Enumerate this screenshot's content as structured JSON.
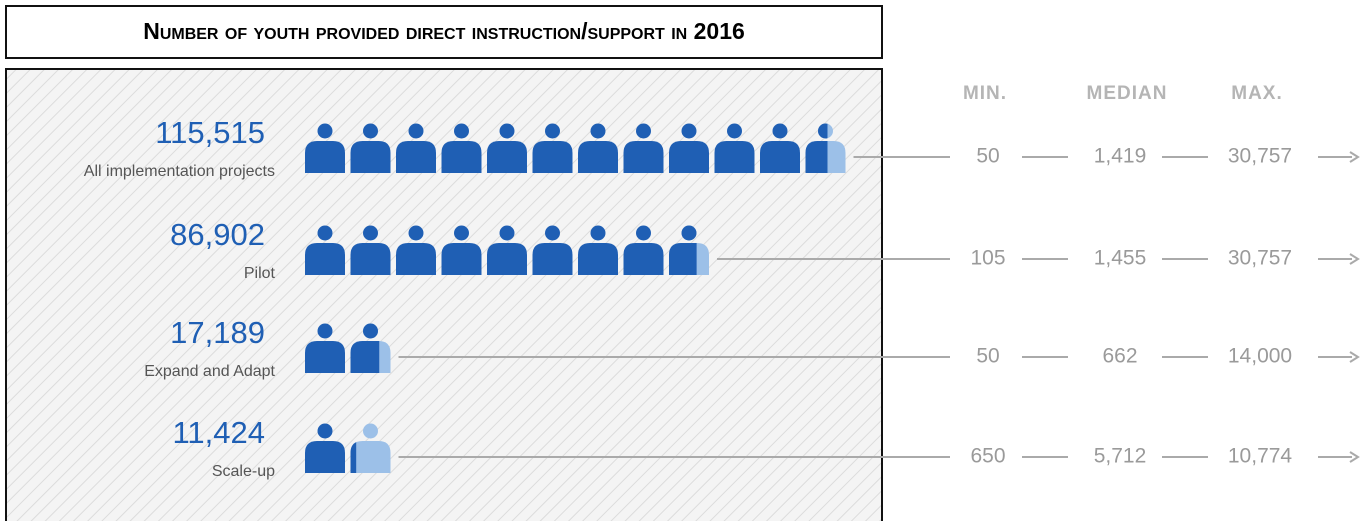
{
  "title": "Number of youth provided direct instruction/support in 2016",
  "columns": [
    "MIN.",
    "MEDIAN",
    "MAX."
  ],
  "rows": [
    {
      "count": 115515,
      "count_label": "115,515",
      "label": "All implementation projects",
      "min": "50",
      "median": "1,419",
      "max": "30,757"
    },
    {
      "count": 86902,
      "count_label": "86,902",
      "label": "Pilot",
      "min": "105",
      "median": "1,455",
      "max": "30,757"
    },
    {
      "count": 17189,
      "count_label": "17,189",
      "label": "Expand and Adapt",
      "min": "50",
      "median": "662",
      "max": "14,000"
    },
    {
      "count": 11424,
      "count_label": "11,424",
      "label": "Scale-up",
      "min": "650",
      "median": "5,712",
      "max": "10,774"
    }
  ]
}
